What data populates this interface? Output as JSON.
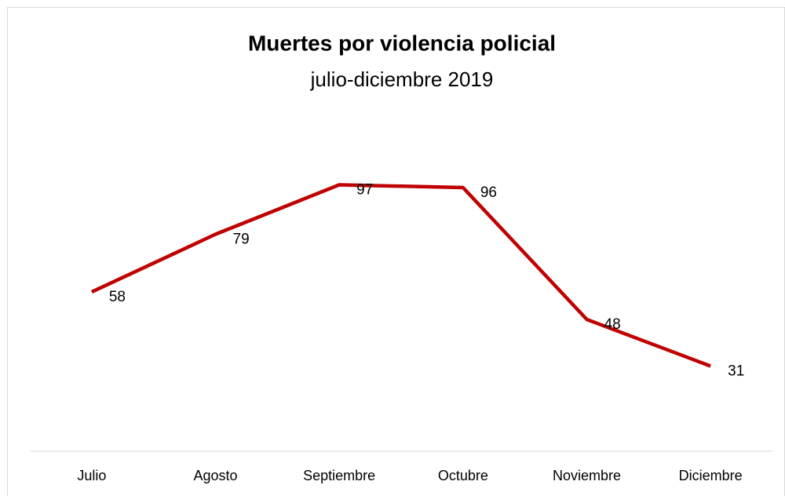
{
  "chart_data": {
    "type": "line",
    "title": "Muertes por violencia policial",
    "subtitle": "julio-diciembre 2019",
    "categories": [
      "Julio",
      "Agosto",
      "Septiembre",
      "Octubre",
      "Noviembre",
      "Diciembre"
    ],
    "series": [
      {
        "color": "#c00000",
        "values": [
          58,
          79,
          97,
          96,
          48,
          31
        ]
      }
    ],
    "ylim": [
      0,
      120
    ]
  }
}
